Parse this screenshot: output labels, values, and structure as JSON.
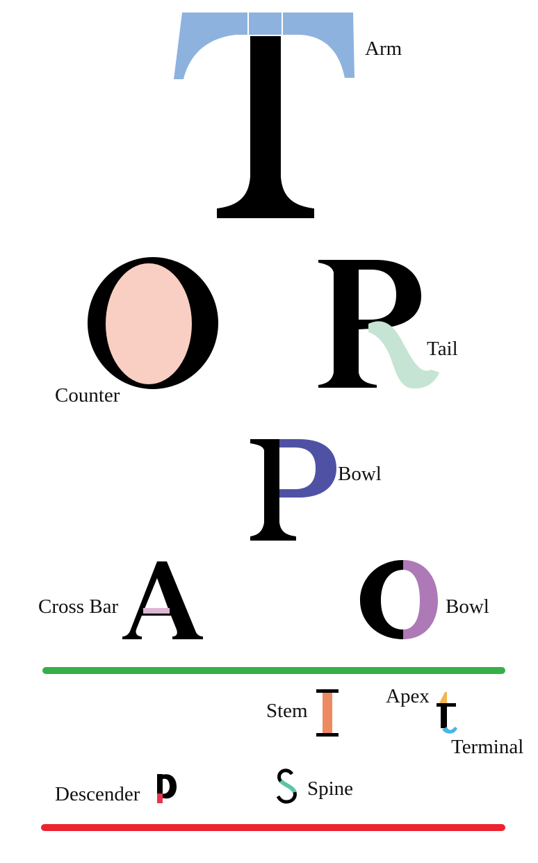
{
  "letters": {
    "t_big": "T",
    "o_big": "O",
    "r_big": "R",
    "p_big": "P",
    "a_mid": "A",
    "o_mid": "O",
    "i_small": "I",
    "t_small": "t",
    "p_small": "p",
    "s_small": "S"
  },
  "labels": {
    "arm": "Arm",
    "tail": "Tail",
    "counter": "Counter",
    "bowl_p": "Bowl",
    "cross_bar": "Cross Bar",
    "bowl_o": "Bowl",
    "stem": "Stem",
    "apex": "Apex",
    "terminal": "Terminal",
    "descender": "Descender",
    "spine": "Spine"
  },
  "colors": {
    "arm": "#8eb2de",
    "counter": "#f8cfc2",
    "tail": "#c6e4d3",
    "bowl_p": "#4f52a4",
    "cross_bar": "#dcb6d3",
    "bowl_o": "#ad79b6",
    "stem": "#ee8a62",
    "apex": "#f1b552",
    "terminal": "#49b6e3",
    "descender": "#e8354f",
    "spine": "#5ec3a8",
    "divider_top": "#37ae4a",
    "divider_bottom": "#ec2331"
  }
}
